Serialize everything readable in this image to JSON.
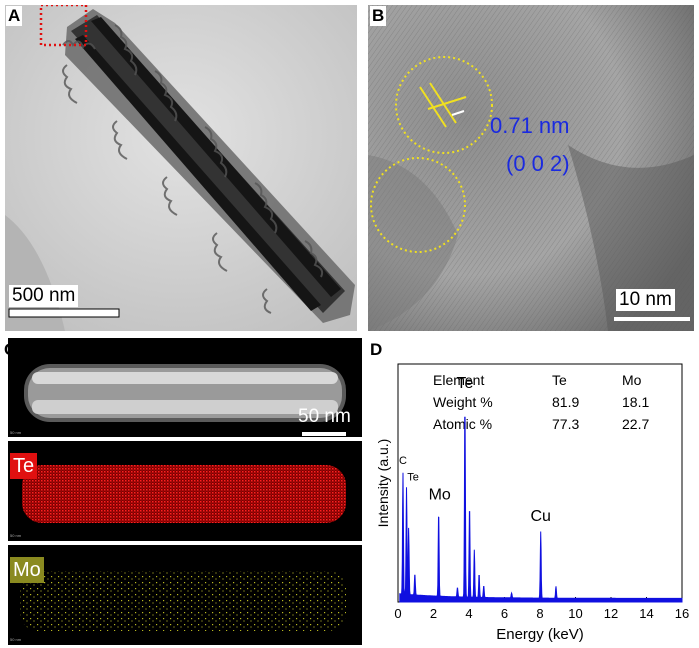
{
  "panels": {
    "a": {
      "letter": "A",
      "scale_bar": "500 nm"
    },
    "b": {
      "letter": "B",
      "scale_bar": "10 nm",
      "d_spacing": "0.71 nm",
      "plane": "(0 0 2)"
    },
    "c": {
      "letter": "C",
      "scale_bar": "50 nm",
      "map_te": "Te",
      "map_mo": "Mo",
      "tiny_scale": "50 nm"
    },
    "d": {
      "letter": "D"
    }
  },
  "eds_table": {
    "headers": [
      "Element",
      "Te",
      "Mo"
    ],
    "rows": [
      [
        "Weight %",
        "81.9",
        "18.1"
      ],
      [
        "Atomic %",
        "77.3",
        "22.7"
      ]
    ]
  },
  "chart_data": {
    "type": "line",
    "xlabel": "Energy (keV)",
    "ylabel": "Intensity (a.u.)",
    "xlim": [
      0,
      16
    ],
    "xticks": [
      0,
      2,
      4,
      6,
      8,
      10,
      12,
      14,
      16
    ],
    "series": [
      {
        "color": "#1010e0",
        "peaks": [
          {
            "x": 0.28,
            "y": 0.51
          },
          {
            "x": 0.48,
            "y": 0.45
          },
          {
            "x": 0.6,
            "y": 0.28
          },
          {
            "x": 0.95,
            "y": 0.09
          },
          {
            "x": 2.29,
            "y": 0.36
          },
          {
            "x": 3.35,
            "y": 0.04
          },
          {
            "x": 3.77,
            "y": 0.82
          },
          {
            "x": 4.03,
            "y": 0.39
          },
          {
            "x": 4.3,
            "y": 0.2
          },
          {
            "x": 4.57,
            "y": 0.1
          },
          {
            "x": 4.83,
            "y": 0.05
          },
          {
            "x": 6.4,
            "y": 0.02
          },
          {
            "x": 8.04,
            "y": 0.28
          },
          {
            "x": 8.9,
            "y": 0.05
          }
        ]
      }
    ],
    "peak_labels": [
      {
        "text": "C",
        "x": 0.28,
        "y": 0.58
      },
      {
        "text": "Te",
        "x": 0.85,
        "y": 0.51
      },
      {
        "text": "Mo",
        "x": 2.35,
        "y": 0.43
      },
      {
        "text": "Te",
        "x": 3.77,
        "y": 0.9
      },
      {
        "text": "Cu",
        "x": 8.04,
        "y": 0.34
      }
    ]
  }
}
